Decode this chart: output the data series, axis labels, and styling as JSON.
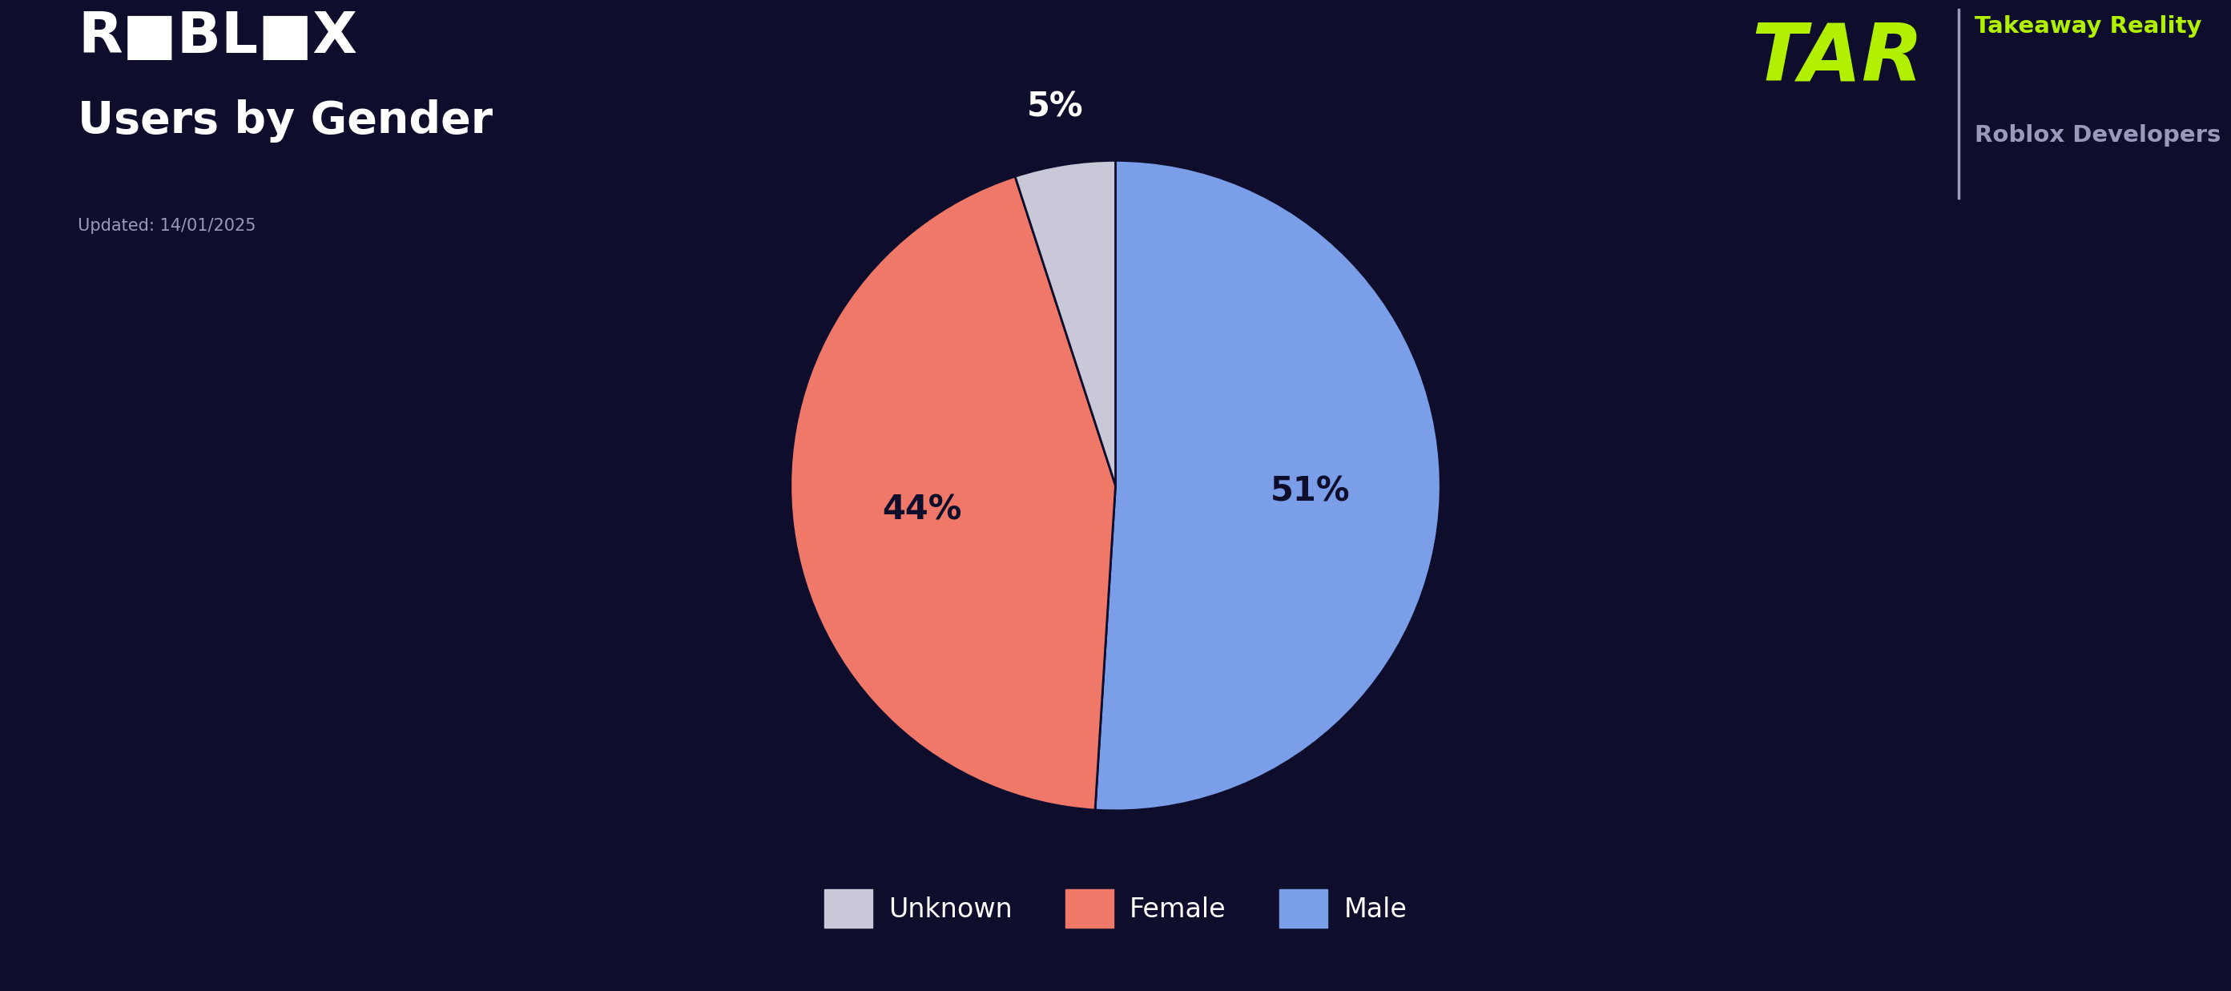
{
  "title": "Users by Gender",
  "updated_text": "Updated: 14/01/2025",
  "slices": [
    51,
    44,
    5
  ],
  "labels_order": [
    "Male",
    "Female",
    "Unknown"
  ],
  "legend_labels": [
    "Unknown",
    "Female",
    "Male"
  ],
  "colors": [
    "#7b9ee8",
    "#f07868",
    "#c8c8d8"
  ],
  "legend_colors": [
    "#c8c8d8",
    "#f07868",
    "#7b9ee8"
  ],
  "autopct_labels": [
    "51%",
    "44%",
    "5%"
  ],
  "background_color": "#0e0e2c",
  "text_color": "#ffffff",
  "title_fontsize": 40,
  "updated_fontsize": 15,
  "legend_fontsize": 24,
  "autopct_fontsize": 30,
  "startangle": 90,
  "tar_text_line1": "Takeaway Reality",
  "tar_text_line2": "Roblox Developers",
  "green_color": "#b0f000",
  "gray_color": "#9999bb"
}
